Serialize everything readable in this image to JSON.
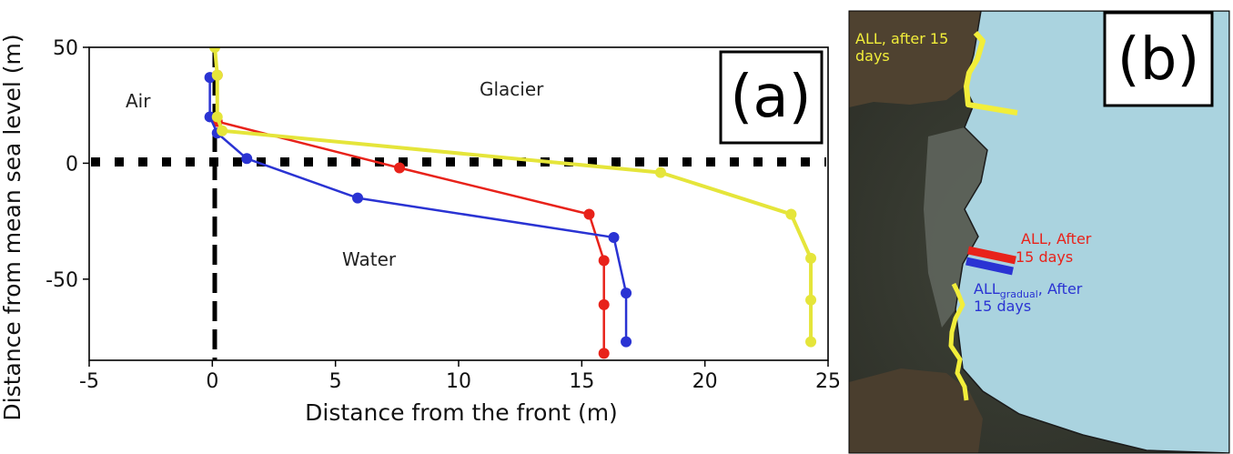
{
  "panel_a": {
    "label": "(a)",
    "region_labels": {
      "air": "Air",
      "glacier": "Glacier",
      "water": "Water"
    },
    "colors": {
      "red": "#e8221a",
      "blue": "#2a33d3",
      "yellow": "#e5e53a",
      "reference": "#000000"
    }
  },
  "chart_data": {
    "type": "line",
    "xlabel": "Distance from the front (m)",
    "ylabel": "Distance from mean sea level (m)",
    "xlim": [
      -5,
      25
    ],
    "ylim": [
      -85,
      50
    ],
    "xticks": [
      -5,
      0,
      5,
      10,
      15,
      20,
      25
    ],
    "yticks": [
      50,
      0,
      -50
    ],
    "grid": false,
    "legend": "none",
    "reference_lines": [
      {
        "orientation": "vertical",
        "value": 0,
        "style": "dashed"
      },
      {
        "orientation": "horizontal",
        "value": 0,
        "style": "dotted"
      }
    ],
    "series": [
      {
        "color": "#e8221a",
        "points": [
          [
            0.2,
            38
          ],
          [
            0.2,
            18
          ],
          [
            7.6,
            -2
          ],
          [
            15.3,
            -22
          ],
          [
            15.9,
            -42
          ],
          [
            15.9,
            -61
          ],
          [
            15.9,
            -82
          ]
        ]
      },
      {
        "color": "#2a33d3",
        "points": [
          [
            -0.1,
            37
          ],
          [
            -0.1,
            20
          ],
          [
            0.2,
            13
          ],
          [
            1.4,
            2
          ],
          [
            5.9,
            -15
          ],
          [
            16.3,
            -32
          ],
          [
            16.8,
            -56
          ],
          [
            16.8,
            -77
          ]
        ]
      },
      {
        "color": "#e5e53a",
        "points": [
          [
            0.1,
            50
          ],
          [
            0.2,
            38
          ],
          [
            0.2,
            20
          ],
          [
            0.4,
            14
          ],
          [
            18.2,
            -4
          ],
          [
            23.5,
            -22
          ],
          [
            24.3,
            -41
          ],
          [
            24.3,
            -59
          ],
          [
            24.3,
            -77
          ]
        ]
      }
    ]
  },
  "panel_b": {
    "label": "(b)",
    "annotations": {
      "yellow_line1": "ALL, after 15",
      "yellow_line2": "days",
      "red_line1": "ALL, After",
      "red_line2": "15 days",
      "blue_main": "ALL",
      "blue_sub": "gradual",
      "blue_after": ", After",
      "blue_line2": "15 days"
    },
    "colors": {
      "glacier": "#aad3df",
      "yellow": "#f2ee3a",
      "red": "#e8221a",
      "blue": "#2a33d3"
    }
  }
}
